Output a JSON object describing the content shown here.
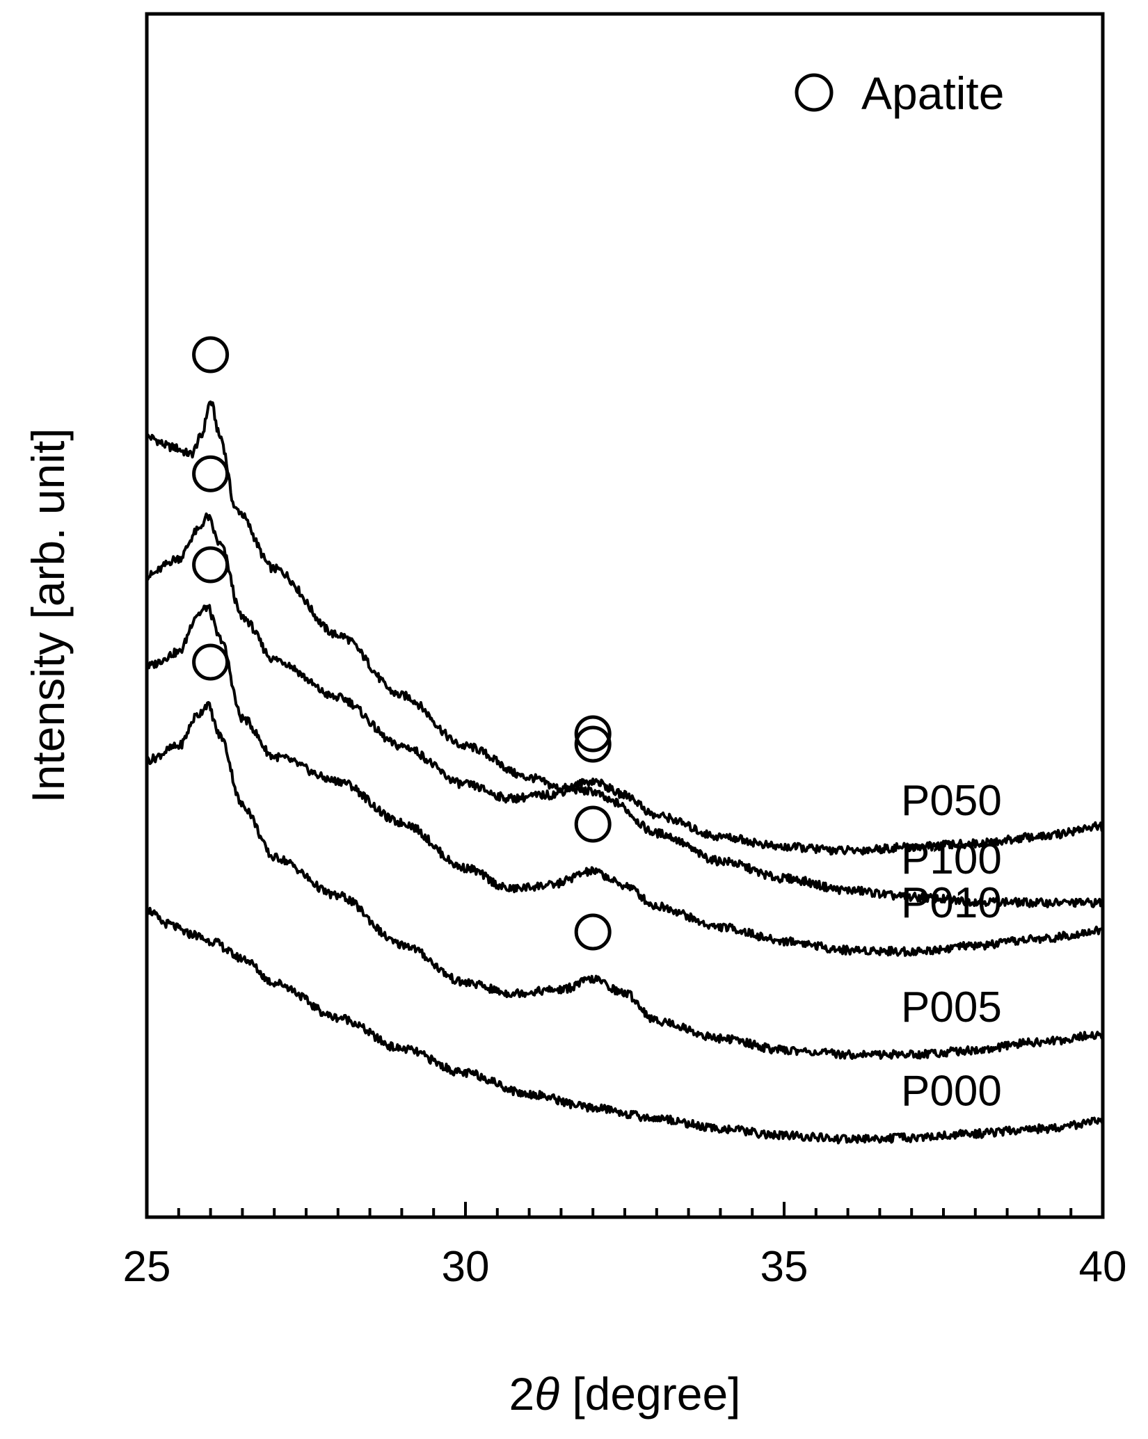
{
  "chart_data": {
    "type": "line",
    "xlabel_prefix": "2",
    "xlabel_symbol": "θ",
    "xlabel_suffix": " [degree]",
    "ylabel": "Intensity [arb. unit]",
    "xlim": [
      25,
      40
    ],
    "x_ticks": [
      "25",
      "30",
      "35",
      "40"
    ],
    "y_ticks_shown": false,
    "legend": {
      "marker": "open-circle",
      "label": "Apatite",
      "position": "top-right"
    },
    "curve_style": {
      "color": "#000000"
    },
    "series": [
      {
        "name": "P100",
        "points": [
          [
            25,
            1.0
          ],
          [
            25.4,
            0.985
          ],
          [
            25.7,
            0.975
          ],
          [
            25.85,
            1.0
          ],
          [
            26.0,
            1.05
          ],
          [
            26.15,
            1.0
          ],
          [
            26.4,
            0.895
          ],
          [
            27,
            0.81
          ],
          [
            28,
            0.715
          ],
          [
            29,
            0.628
          ],
          [
            30,
            0.555
          ],
          [
            31,
            0.51
          ],
          [
            31.5,
            0.495
          ],
          [
            32,
            0.49
          ],
          [
            32.3,
            0.475
          ],
          [
            33,
            0.43
          ],
          [
            34,
            0.39
          ],
          [
            35,
            0.365
          ],
          [
            36,
            0.348
          ],
          [
            37,
            0.338
          ],
          [
            38,
            0.332
          ],
          [
            39,
            0.33
          ],
          [
            40,
            0.33
          ]
        ],
        "apatite_peaks": [
          26.0,
          32.0
        ]
      },
      {
        "name": "P050",
        "points": [
          [
            25,
            0.8
          ],
          [
            25.5,
            0.825
          ],
          [
            25.8,
            0.865
          ],
          [
            25.95,
            0.885
          ],
          [
            26.15,
            0.845
          ],
          [
            26.5,
            0.74
          ],
          [
            27,
            0.68
          ],
          [
            28,
            0.625
          ],
          [
            29,
            0.555
          ],
          [
            30,
            0.5
          ],
          [
            30.7,
            0.48
          ],
          [
            31.3,
            0.485
          ],
          [
            32,
            0.505
          ],
          [
            32.5,
            0.485
          ],
          [
            33,
            0.455
          ],
          [
            34,
            0.425
          ],
          [
            35,
            0.41
          ],
          [
            36,
            0.405
          ],
          [
            37,
            0.41
          ],
          [
            38,
            0.415
          ],
          [
            39,
            0.425
          ],
          [
            40,
            0.44
          ]
        ],
        "apatite_peaks": [
          26.0,
          32.0
        ]
      },
      {
        "name": "P010",
        "points": [
          [
            25,
            0.67
          ],
          [
            25.5,
            0.69
          ],
          [
            25.8,
            0.745
          ],
          [
            25.95,
            0.755
          ],
          [
            26.15,
            0.71
          ],
          [
            26.5,
            0.595
          ],
          [
            27,
            0.54
          ],
          [
            28,
            0.505
          ],
          [
            29,
            0.445
          ],
          [
            30,
            0.38
          ],
          [
            30.7,
            0.35
          ],
          [
            31.3,
            0.355
          ],
          [
            32,
            0.375
          ],
          [
            32.5,
            0.355
          ],
          [
            33,
            0.325
          ],
          [
            34,
            0.295
          ],
          [
            35,
            0.275
          ],
          [
            36,
            0.262
          ],
          [
            37,
            0.26
          ],
          [
            38,
            0.268
          ],
          [
            39,
            0.278
          ],
          [
            40,
            0.29
          ]
        ],
        "apatite_peaks": [
          26.0,
          32.0
        ]
      },
      {
        "name": "P005",
        "points": [
          [
            25,
            0.535
          ],
          [
            25.5,
            0.555
          ],
          [
            25.8,
            0.6
          ],
          [
            25.95,
            0.615
          ],
          [
            26.15,
            0.57
          ],
          [
            26.5,
            0.47
          ],
          [
            27,
            0.395
          ],
          [
            28,
            0.34
          ],
          [
            29,
            0.27
          ],
          [
            30,
            0.215
          ],
          [
            30.7,
            0.2
          ],
          [
            31.5,
            0.205
          ],
          [
            32,
            0.22
          ],
          [
            32.5,
            0.2
          ],
          [
            33,
            0.16
          ],
          [
            34,
            0.135
          ],
          [
            35,
            0.118
          ],
          [
            36,
            0.112
          ],
          [
            37,
            0.112
          ],
          [
            38,
            0.118
          ],
          [
            39,
            0.13
          ],
          [
            40,
            0.14
          ]
        ],
        "apatite_peaks": [
          26.0,
          32.0
        ]
      },
      {
        "name": "P000",
        "points": [
          [
            25,
            0.32
          ],
          [
            25.3,
            0.3
          ],
          [
            25.7,
            0.285
          ],
          [
            26,
            0.275
          ],
          [
            26.5,
            0.25
          ],
          [
            27,
            0.215
          ],
          [
            28,
            0.165
          ],
          [
            29,
            0.12
          ],
          [
            30,
            0.085
          ],
          [
            31,
            0.055
          ],
          [
            32,
            0.035
          ],
          [
            33,
            0.02
          ],
          [
            34,
            0.005
          ],
          [
            35,
            -0.005
          ],
          [
            36,
            -0.01
          ],
          [
            37,
            -0.008
          ],
          [
            38,
            -0.002
          ],
          [
            39,
            0.005
          ],
          [
            40,
            0.015
          ]
        ],
        "apatite_peaks": []
      }
    ]
  }
}
